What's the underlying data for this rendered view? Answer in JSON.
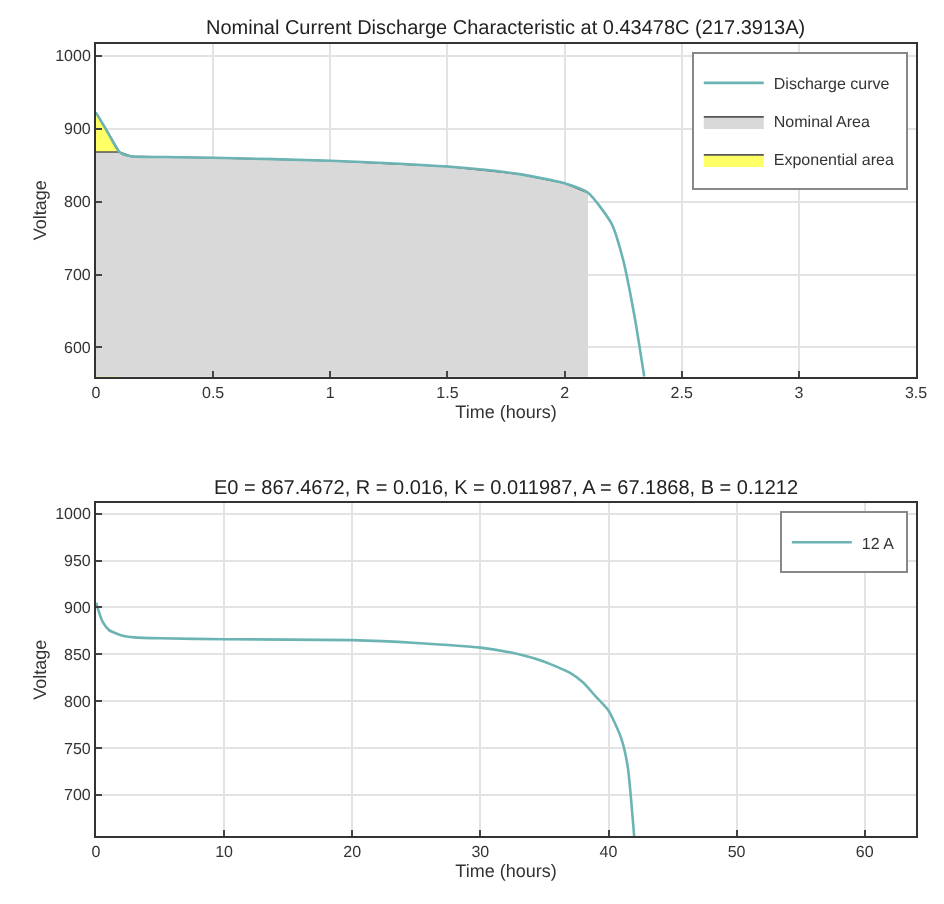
{
  "chart_data": [
    {
      "type": "line",
      "title": "Nominal Current Discharge Characteristic at 0.43478C (217.3913A)",
      "xlabel": "Time (hours)",
      "ylabel": "Voltage",
      "xlim": [
        0,
        3.5
      ],
      "xticks": [
        0,
        0.5,
        1,
        1.5,
        2,
        2.5,
        3,
        3.5
      ],
      "ylim": [
        560,
        1016
      ],
      "yticks": [
        600,
        700,
        800,
        900,
        1000
      ],
      "grid": true,
      "legend": "top right",
      "series": [
        {
          "name": "Discharge curve",
          "color": "#6cb4b4",
          "x": [
            0,
            0.05,
            0.1,
            0.15,
            0.3,
            0.5,
            1.0,
            1.5,
            1.8,
            2.0,
            2.1,
            2.2,
            2.25,
            2.3,
            2.34
          ],
          "values": [
            922,
            895,
            868,
            862,
            861,
            860,
            856,
            848,
            838,
            825,
            812,
            770,
            720,
            640,
            560
          ]
        },
        {
          "name": "Nominal Area",
          "type": "area",
          "color": "#d9d9d9",
          "x": [
            0,
            0.1,
            0.15,
            0.3,
            0.5,
            1.0,
            1.5,
            1.8,
            2.0,
            2.1
          ],
          "values": [
            868,
            868,
            862,
            861,
            860,
            856,
            848,
            838,
            825,
            812
          ]
        },
        {
          "name": "Exponential area",
          "type": "area",
          "color": "#ffff66",
          "x": [
            0,
            0.05,
            0.1
          ],
          "values": [
            922,
            895,
            868
          ]
        }
      ]
    },
    {
      "type": "line",
      "title": "E0 = 867.4672, R = 0.016, K = 0.011987, A = 67.1868, B = 0.1212",
      "xlabel": "Time (hours)",
      "ylabel": "Voltage",
      "xlim": [
        0,
        64
      ],
      "xticks": [
        0,
        10,
        20,
        30,
        40,
        50,
        60
      ],
      "ylim": [
        656,
        1011
      ],
      "yticks": [
        700,
        750,
        800,
        850,
        900,
        950,
        1000
      ],
      "grid": true,
      "legend": "top right",
      "series": [
        {
          "name": "12 A",
          "color": "#6cb4b4",
          "x": [
            0,
            0.5,
            1,
            2,
            3,
            5,
            10,
            20,
            25,
            30,
            33,
            35,
            37,
            38,
            39,
            40,
            41,
            41.5,
            42
          ],
          "values": [
            905,
            885,
            876,
            870,
            868,
            867,
            866,
            865,
            862,
            857,
            850,
            842,
            830,
            820,
            805,
            790,
            760,
            730,
            656
          ]
        }
      ]
    }
  ]
}
